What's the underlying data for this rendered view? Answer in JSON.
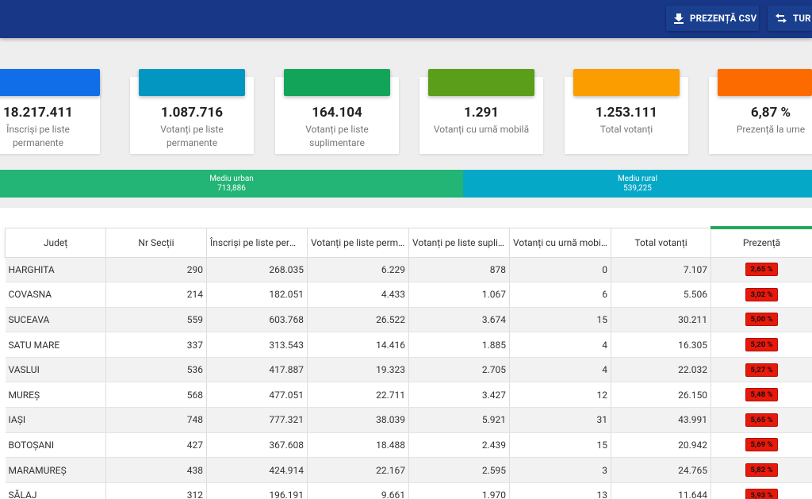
{
  "toolbar": {
    "csv_button": "PREZENȚĂ CSV",
    "tur_button": "TUR"
  },
  "cards": [
    {
      "value": "18.217.411",
      "label": "Înscriși pe liste permanente",
      "color": "#0f6ee8"
    },
    {
      "value": "1.087.716",
      "label": "Votanți pe liste permanente",
      "color": "#0396c0"
    },
    {
      "value": "164.104",
      "label": "Votanți pe liste suplimentare",
      "color": "#12a55a"
    },
    {
      "value": "1.291",
      "label": "Votanți cu urnă mobilă",
      "color": "#5a9e1a"
    },
    {
      "value": "1.253.111",
      "label": "Total votanți",
      "color": "#fb9c00"
    },
    {
      "value": "6,87 %",
      "label": "Prezență la urne",
      "color": "#fb6b00"
    }
  ],
  "environment": {
    "urban": {
      "label": "Mediu urban",
      "value": "713,886",
      "color": "#22b575"
    },
    "rural": {
      "label": "Mediu rural",
      "value": "539,225",
      "color": "#06a8c8"
    }
  },
  "table": {
    "headers": [
      "Județ",
      "Nr Secții",
      "Înscriși pe liste permanente",
      "Votanți pe liste permanente",
      "Votanți pe liste suplimentare",
      "Votanți cu urnă mobilă",
      "Total votanți",
      "Prezență"
    ],
    "rows": [
      [
        "HARGHITA",
        "290",
        "268.035",
        "6.229",
        "878",
        "0",
        "7.107",
        "2,65 %"
      ],
      [
        "COVASNA",
        "214",
        "182.051",
        "4.433",
        "1.067",
        "6",
        "5.506",
        "3,02 %"
      ],
      [
        "SUCEAVA",
        "559",
        "603.768",
        "26.522",
        "3.674",
        "15",
        "30.211",
        "5,00 %"
      ],
      [
        "SATU MARE",
        "337",
        "313.543",
        "14.416",
        "1.885",
        "4",
        "16.305",
        "5,20 %"
      ],
      [
        "VASLUI",
        "536",
        "417.887",
        "19.323",
        "2.705",
        "4",
        "22.032",
        "5,27 %"
      ],
      [
        "MUREȘ",
        "568",
        "477.051",
        "22.711",
        "3.427",
        "12",
        "26.150",
        "5,48 %"
      ],
      [
        "IAȘI",
        "748",
        "777.321",
        "38.039",
        "5.921",
        "31",
        "43.991",
        "5,65 %"
      ],
      [
        "BOTOȘANI",
        "427",
        "367.608",
        "18.488",
        "2.439",
        "15",
        "20.942",
        "5,69 %"
      ],
      [
        "MARAMUREȘ",
        "438",
        "424.914",
        "22.167",
        "2.595",
        "3",
        "24.765",
        "5,82 %"
      ],
      [
        "SĂLAJ",
        "312",
        "196.191",
        "9.661",
        "1.970",
        "13",
        "11.644",
        "5,93 %"
      ]
    ]
  }
}
